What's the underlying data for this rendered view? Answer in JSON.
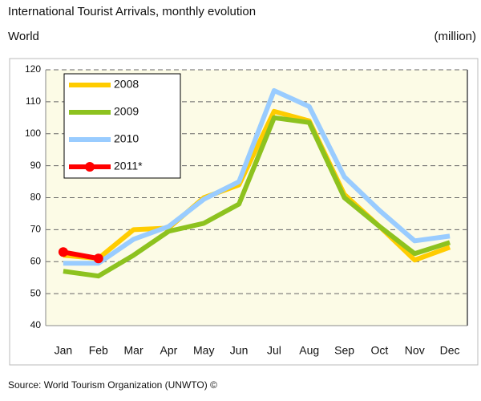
{
  "chart_data": {
    "type": "line",
    "title": "International Tourist Arrivals, monthly evolution",
    "subtitle": "World",
    "y_label": "(million)",
    "source": "Source: World Tourism Organization (UNWTO) ©",
    "categories": [
      "Jan",
      "Feb",
      "Mar",
      "Apr",
      "May",
      "Jun",
      "Jul",
      "Aug",
      "Sep",
      "Oct",
      "Nov",
      "Dec"
    ],
    "series": [
      {
        "name": "2008",
        "color": "#ffcc00",
        "values": [
          62,
          61,
          70,
          70.5,
          80,
          84,
          107,
          104,
          81,
          71,
          60.5,
          64.5
        ]
      },
      {
        "name": "2009",
        "color": "#8dc21f",
        "values": [
          57,
          55.5,
          62,
          69.5,
          72,
          78,
          105,
          103.5,
          80,
          71,
          62.5,
          66
        ]
      },
      {
        "name": "2010",
        "color": "#99ccff",
        "values": [
          59.5,
          59.5,
          67,
          71,
          79.5,
          85,
          113.5,
          108.5,
          86.5,
          76,
          66.5,
          68
        ]
      },
      {
        "name": "2011*",
        "color": "#ff0000",
        "marker": "circle",
        "values": [
          63,
          61,
          null,
          null,
          null,
          null,
          null,
          null,
          null,
          null,
          null,
          null
        ]
      }
    ],
    "ylim": [
      40,
      120
    ],
    "yticks": [
      40,
      50,
      60,
      70,
      80,
      90,
      100,
      110,
      120
    ],
    "grid": true,
    "legend": "upper left"
  }
}
